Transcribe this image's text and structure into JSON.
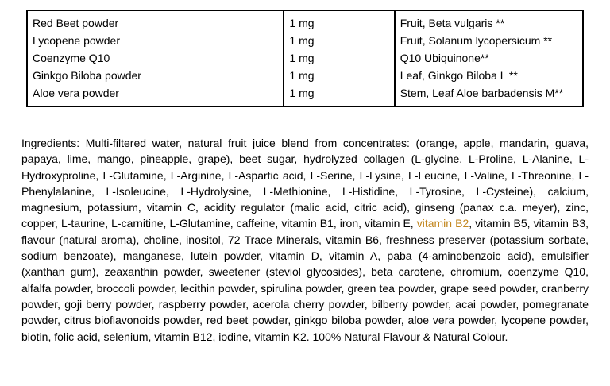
{
  "page": {
    "background": "#ffffff",
    "text_color": "#000000"
  },
  "supplement_table": {
    "rows": [
      {
        "ingredient": "Red Beet powder",
        "amount": "1 mg",
        "source": "Fruit, Beta vulgaris **"
      },
      {
        "ingredient": "Lycopene powder",
        "amount": "1 mg",
        "source": "Fruit, Solanum lycopersicum **"
      },
      {
        "ingredient": "Coenzyme Q10",
        "amount": "1 mg",
        "source": "Q10 Ubiquinone**"
      },
      {
        "ingredient": "Ginkgo Biloba powder",
        "amount": "1 mg",
        "source": "Leaf, Ginkgo Biloba L **"
      },
      {
        "ingredient": "Aloe vera powder",
        "amount": "1 mg",
        "source": "Stem, Leaf Aloe barbadensis M**"
      }
    ]
  },
  "ingredients_paragraph": {
    "before_highlight": "Ingredients: Multi-filtered water, natural fruit juice blend from concentrates: (orange, apple, mandarin, guava, papaya, lime, mango, pineapple, grape), beet sugar, hydrolyzed collagen (L-glycine, L-Proline, L-Alanine, L-Hydroxyproline, L-Glutamine, L-Arginine, L-Aspartic acid, L-Serine, L-Lysine, L-Leucine, L-Valine, L-Threonine, L-Phenylalanine, L-Isoleucine, L-Hydrolysine, L-Methionine, L-Histidine, L-Tyrosine, L-Cysteine), calcium, magnesium, potassium, vitamin C, acidity regulator (malic acid, citric acid), ginseng (panax c.a. meyer), zinc, copper, L-taurine, L-carnitine, L-Glutamine, caffeine, vitamin B1, iron, vitamin E, ",
    "highlight": "vitamin B2",
    "after_highlight": ", vitamin B5, vitamin B3, flavour (natural aroma), choline, inositol, 72 Trace Minerals, vitamin B6, freshness preserver (potassium sorbate, sodium benzoate), manganese, lutein powder, vitamin D, vitamin A, paba (4-aminobenzoic acid), emulsifier (xanthan gum), zeaxanthin powder, sweetener (steviol glycosides), beta carotene, chromium, coenzyme Q10, alfalfa powder, broccoli powder, lecithin powder, spirulina powder, green tea powder, grape seed powder, cranberry powder, goji berry powder, raspberry powder, acerola cherry powder, bilberry powder, acai powder, pomegranate powder, citrus bioflavonoids powder, red beet powder, ginkgo biloba powder, aloe vera powder, lycopene powder, biotin, folic acid, selenium, vitamin B12, iodine, vitamin K2. 100% Natural Flavour & Natural Colour.",
    "highlight_color": "#c2861e"
  }
}
